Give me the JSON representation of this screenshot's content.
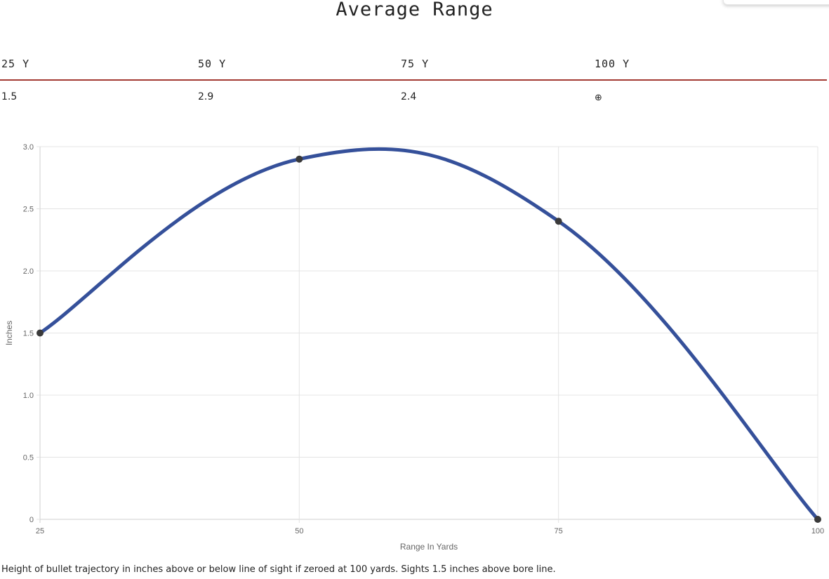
{
  "title": "Average Range",
  "table": {
    "headers": [
      "25 Y",
      "50 Y",
      "75 Y",
      "100 Y"
    ],
    "values": [
      "1.5",
      "2.9",
      "2.4",
      "⊕"
    ]
  },
  "chart_data": {
    "type": "line",
    "x": [
      25,
      50,
      75,
      100
    ],
    "series": [
      {
        "values": [
          1.5,
          2.9,
          2.4,
          0
        ]
      }
    ],
    "x_tick_labels": [
      "25",
      "50",
      "75",
      "100"
    ],
    "y_tick_labels": [
      "0",
      "0.5",
      "1.0",
      "1.5",
      "2.0",
      "2.5",
      "3.0"
    ],
    "y_ticks": [
      0,
      0.5,
      1.0,
      1.5,
      2.0,
      2.5,
      3.0
    ],
    "xlim": [
      25,
      100
    ],
    "ylim": [
      0,
      3.0
    ],
    "xlabel": "Range In Yards",
    "ylabel": "Inches",
    "grid": true,
    "line_color": "#35509a",
    "point_color": "#3a3a3a",
    "grid_color": "#e4e4e4"
  },
  "caption": "Height of bullet trajectory in inches above or below line of sight if zeroed at 100 yards. Sights 1.5 inches above bore line."
}
